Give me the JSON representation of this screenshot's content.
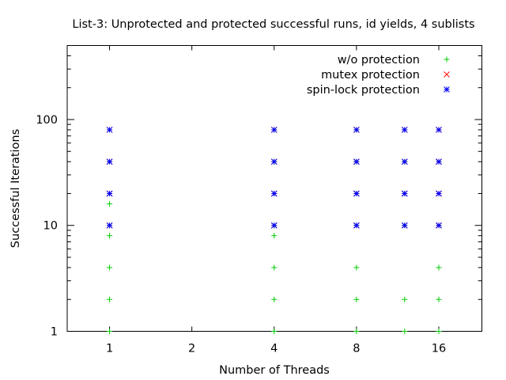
{
  "chart_data": {
    "type": "scatter",
    "title": "List-3: Unprotected and protected successful runs, id yields, 4 sublists",
    "xlabel": "Number of Threads",
    "ylabel": "Successful Iterations",
    "xscale": "log2",
    "yscale": "log10",
    "xlim": [
      0.7,
      23
    ],
    "ylim": [
      1,
      500
    ],
    "xticks": [
      1,
      2,
      4,
      8,
      16
    ],
    "xtick_labels": [
      "1",
      "2",
      "4",
      "8",
      "16"
    ],
    "yticks": [
      1,
      10,
      100
    ],
    "ytick_labels": [
      "1",
      "10",
      "100"
    ],
    "grid": false,
    "legend_position": "top-right",
    "series": [
      {
        "name": "w/o protection",
        "marker": "plus",
        "color": "#00cc00",
        "points": [
          [
            1,
            1
          ],
          [
            1,
            2
          ],
          [
            1,
            4
          ],
          [
            1,
            8
          ],
          [
            1,
            10
          ],
          [
            1,
            16
          ],
          [
            1,
            20
          ],
          [
            1,
            40
          ],
          [
            1,
            80
          ],
          [
            4,
            1
          ],
          [
            4,
            2
          ],
          [
            4,
            4
          ],
          [
            4,
            8
          ],
          [
            4,
            10
          ],
          [
            4,
            20
          ],
          [
            4,
            40
          ],
          [
            4,
            80
          ],
          [
            8,
            1
          ],
          [
            8,
            2
          ],
          [
            8,
            4
          ],
          [
            8,
            10
          ],
          [
            8,
            20
          ],
          [
            8,
            40
          ],
          [
            8,
            80
          ],
          [
            12,
            1
          ],
          [
            12,
            2
          ],
          [
            12,
            10
          ],
          [
            12,
            20
          ],
          [
            12,
            40
          ],
          [
            12,
            80
          ],
          [
            16,
            1
          ],
          [
            16,
            2
          ],
          [
            16,
            4
          ],
          [
            16,
            10
          ],
          [
            16,
            20
          ],
          [
            16,
            40
          ],
          [
            16,
            80
          ]
        ]
      },
      {
        "name": "mutex protection",
        "marker": "cross",
        "color": "#ff0000",
        "points": [
          [
            1,
            10
          ],
          [
            1,
            20
          ],
          [
            1,
            40
          ],
          [
            1,
            80
          ],
          [
            4,
            10
          ],
          [
            4,
            20
          ],
          [
            4,
            40
          ],
          [
            4,
            80
          ],
          [
            8,
            10
          ],
          [
            8,
            20
          ],
          [
            8,
            40
          ],
          [
            8,
            80
          ],
          [
            12,
            10
          ],
          [
            12,
            20
          ],
          [
            12,
            40
          ],
          [
            12,
            80
          ],
          [
            16,
            10
          ],
          [
            16,
            20
          ],
          [
            16,
            40
          ],
          [
            16,
            80
          ]
        ]
      },
      {
        "name": "spin-lock protection",
        "marker": "star",
        "color": "#0000ff",
        "points": [
          [
            1,
            10
          ],
          [
            1,
            20
          ],
          [
            1,
            40
          ],
          [
            1,
            80
          ],
          [
            4,
            10
          ],
          [
            4,
            20
          ],
          [
            4,
            40
          ],
          [
            4,
            80
          ],
          [
            8,
            10
          ],
          [
            8,
            20
          ],
          [
            8,
            40
          ],
          [
            8,
            80
          ],
          [
            12,
            10
          ],
          [
            12,
            20
          ],
          [
            12,
            40
          ],
          [
            12,
            80
          ],
          [
            16,
            10
          ],
          [
            16,
            20
          ],
          [
            16,
            40
          ],
          [
            16,
            80
          ]
        ]
      }
    ]
  }
}
